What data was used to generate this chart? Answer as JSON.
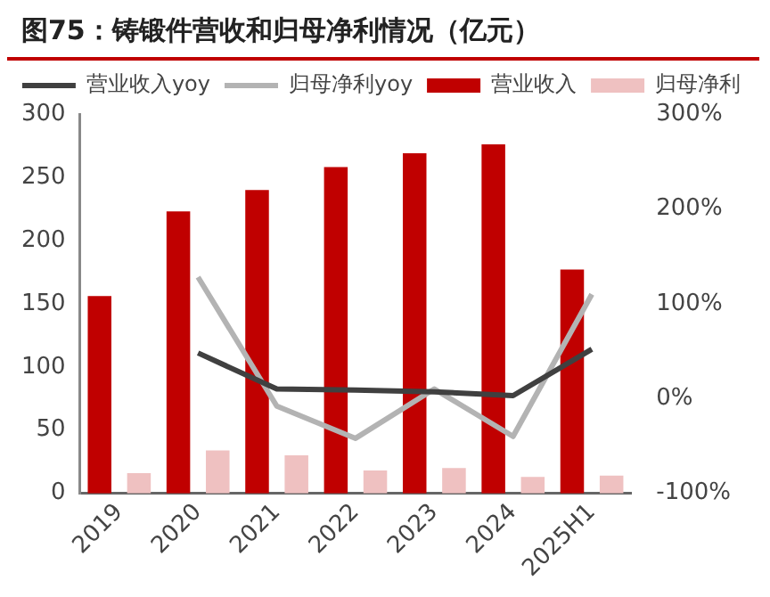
{
  "chart_data": {
    "type": "bar",
    "title": "图75：铸锻件营收和归母净利情况（亿元）",
    "categories": [
      "2019",
      "2020",
      "2021",
      "2022",
      "2023",
      "2024",
      "2025H1"
    ],
    "series": [
      {
        "name": "营业收入",
        "color": "#c00000",
        "values": [
          156,
          223,
          240,
          258,
          269,
          276,
          177
        ]
      },
      {
        "name": "归母净利",
        "color": "#efc1c1",
        "values": [
          16,
          34,
          30,
          18,
          20,
          13,
          14
        ]
      },
      {
        "name": "营业收入yoy",
        "type": "line",
        "axis": "y2",
        "color": "#404040",
        "values": [
          null,
          48,
          10,
          9,
          7,
          3,
          52
        ]
      },
      {
        "name": "归母净利yoy",
        "type": "line",
        "axis": "y2",
        "color": "#b3b3b3",
        "values": [
          null,
          128,
          -8,
          -42,
          10,
          -40,
          110
        ]
      }
    ],
    "ylim": [
      0,
      300
    ],
    "yticks": [
      0,
      50,
      100,
      150,
      200,
      250,
      300
    ],
    "y2lim": [
      -100,
      300
    ],
    "y2ticks": [
      {
        "value": -100,
        "label": "-100%"
      },
      {
        "value": 0,
        "label": "0%"
      },
      {
        "value": 100,
        "label": "100%"
      },
      {
        "value": 200,
        "label": "200%"
      },
      {
        "value": 300,
        "label": "300%"
      }
    ],
    "grid": false,
    "legend": "top",
    "marker": "none",
    "line_style": "solid"
  }
}
